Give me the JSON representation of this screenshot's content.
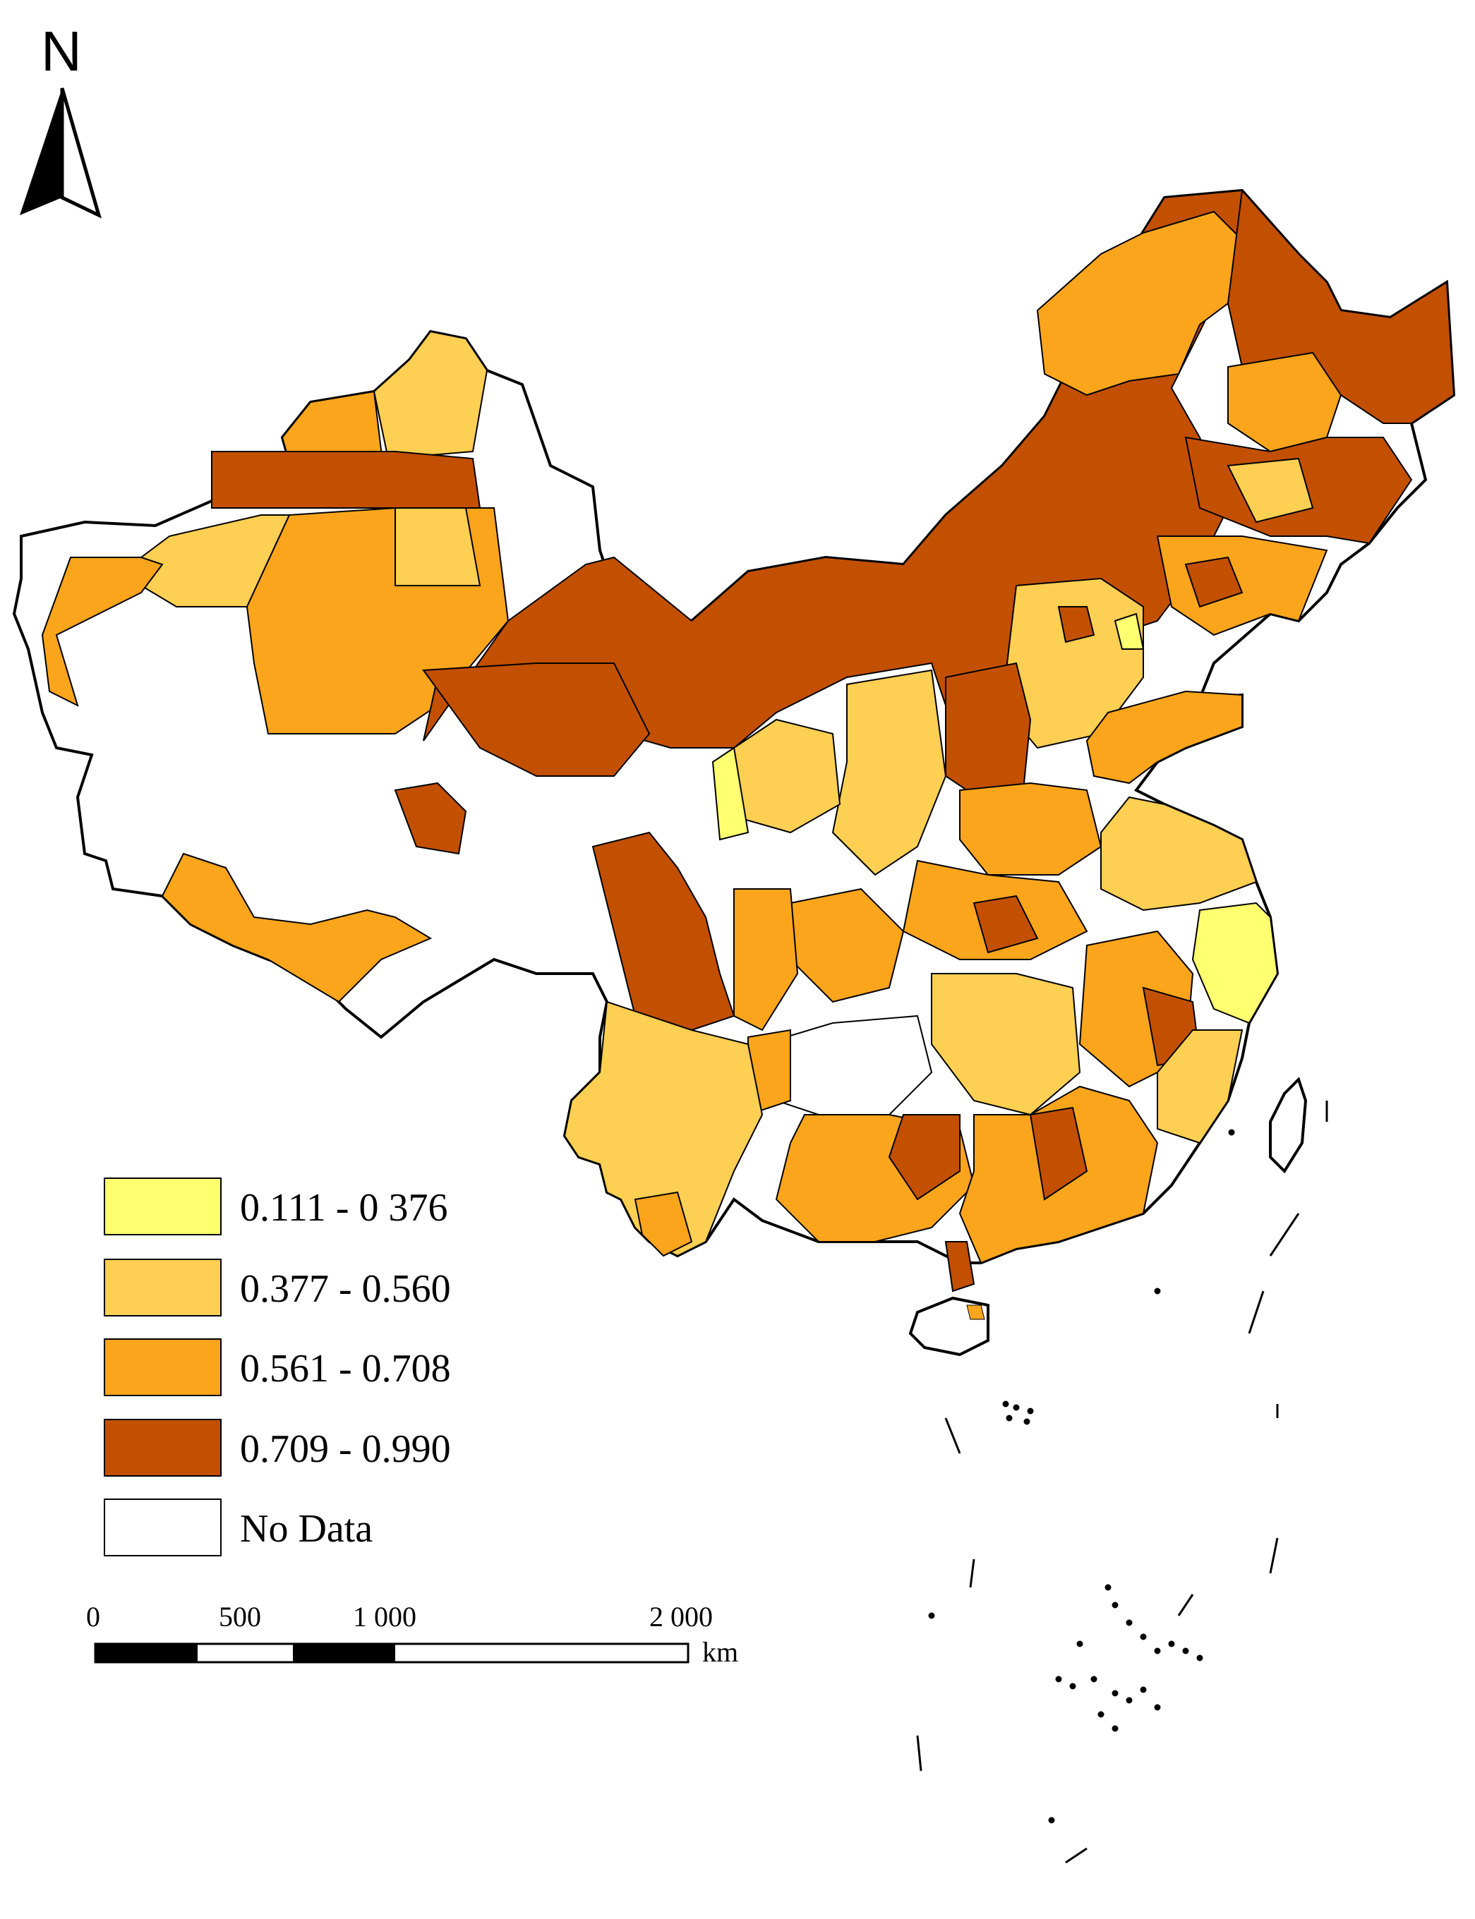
{
  "north_arrow": {
    "label": "N",
    "icon": "north-arrow-icon"
  },
  "legend": {
    "items": [
      {
        "label": "0.111 - 0 376",
        "color": "#ffff70"
      },
      {
        "label": "0.377 - 0.560",
        "color": "#fdcf52"
      },
      {
        "label": "0.561 - 0.708",
        "color": "#fba51c"
      },
      {
        "label": "0.709 - 0.990",
        "color": "#c25000"
      },
      {
        "label": "No Data",
        "color": "#ffffff"
      }
    ]
  },
  "scale_bar": {
    "ticks": [
      "0",
      "500",
      "1 000",
      "2 000"
    ],
    "unit": "km"
  },
  "colors": {
    "boundary": "#000000",
    "internal_boundary": "#555555"
  }
}
